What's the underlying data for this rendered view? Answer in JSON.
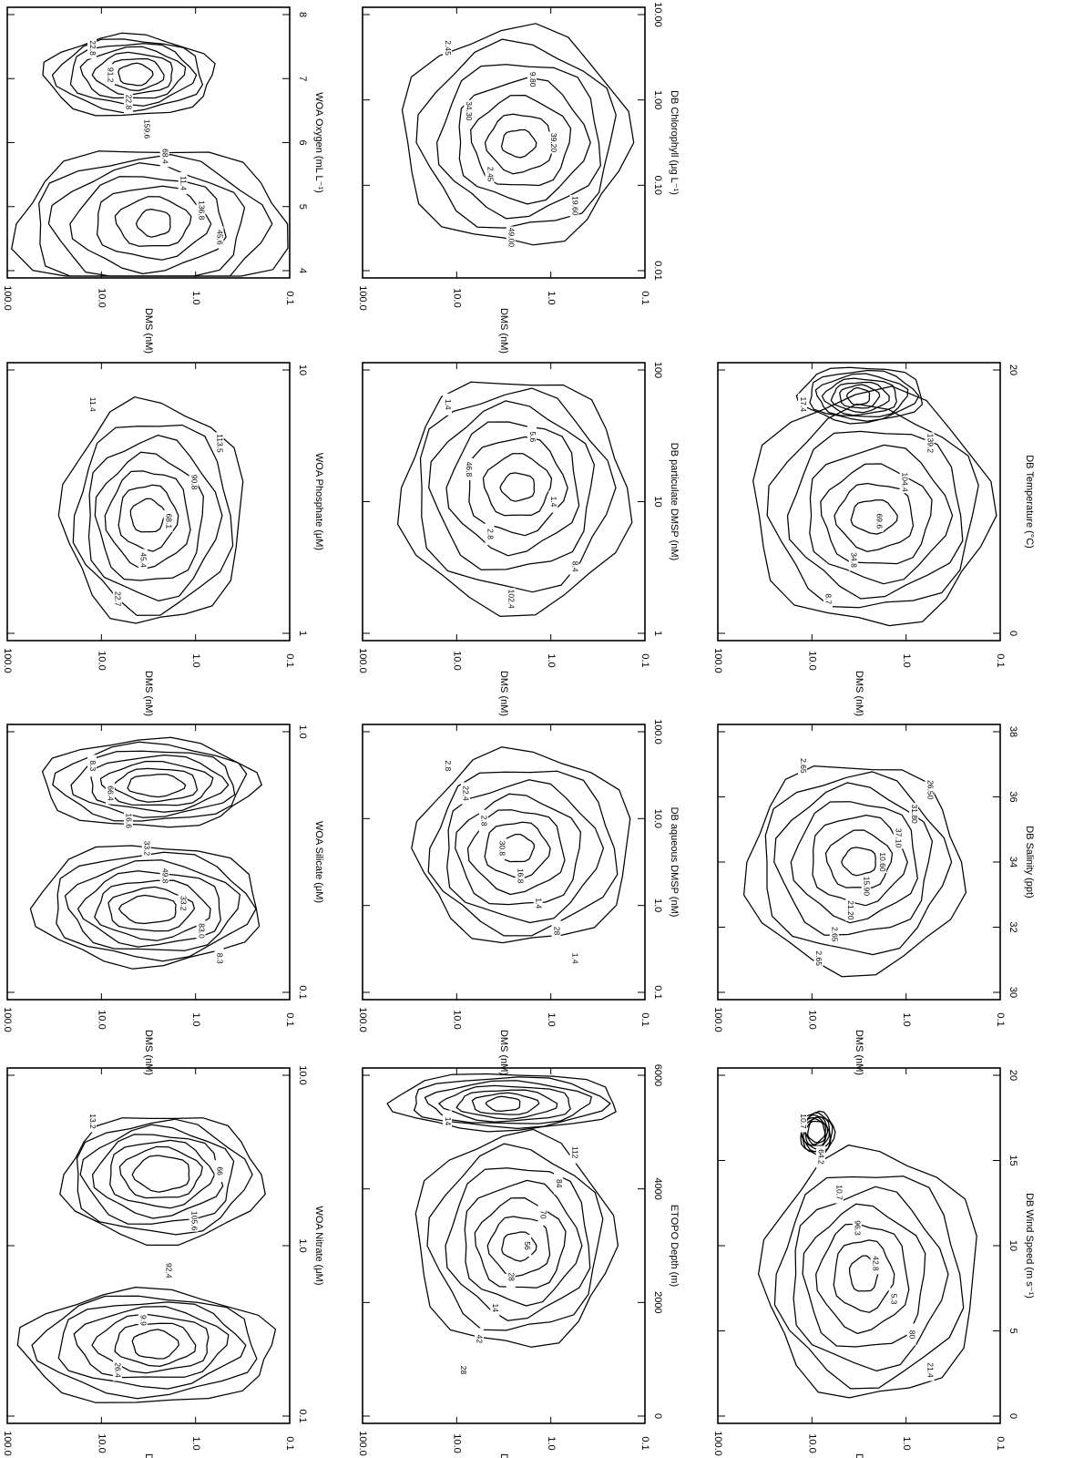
{
  "colors": {
    "ink": "#000000",
    "background": "#ffffff"
  },
  "chart_data": [
    {
      "type": "contour",
      "grid": false,
      "xlabel": "WOA Nitrate (μM)",
      "ylabel": "DMS (nM)",
      "xscale": "log",
      "yscale": "log",
      "xticks": [
        "0.1",
        "1.0",
        "10.0"
      ],
      "yticks": [
        "100.0",
        "10.0",
        "1.0",
        "0.1"
      ],
      "contour_labels": [
        "13.2",
        "26.4",
        "9.9",
        "92.4",
        "105.6",
        "66"
      ]
    },
    {
      "type": "contour",
      "grid": false,
      "xlabel": "WOA Silicate (μM)",
      "ylabel": "DMS (nM)",
      "xscale": "log",
      "yscale": "log",
      "xticks": [
        "0.1",
        "1.0"
      ],
      "yticks": [
        "100.0",
        "10.0",
        "1.0",
        "0.1"
      ],
      "contour_labels": [
        "8.3",
        "33.2",
        "16.6",
        "8.3",
        "49.8",
        "66.4",
        "83.0",
        "33.2"
      ]
    },
    {
      "type": "contour",
      "grid": false,
      "xlabel": "WOA Phosphate (μM)",
      "ylabel": "DMS (nM)",
      "xscale": "log",
      "yscale": "log",
      "xticks": [
        "1",
        "10"
      ],
      "yticks": [
        "100.0",
        "10.0",
        "1.0",
        "0.1"
      ],
      "contour_labels": [
        "11.4",
        "22.7",
        "45.4",
        "68.1",
        "90.8",
        "113.5"
      ]
    },
    {
      "type": "contour",
      "grid": false,
      "xlabel": "WOA Oxygen (mL L⁻¹)",
      "ylabel": "DMS (nM)",
      "xscale": "linear",
      "yscale": "log",
      "xticks": [
        "4",
        "5",
        "6",
        "7",
        "8"
      ],
      "yticks": [
        "100.0",
        "10.0",
        "1.0",
        "0.1"
      ],
      "contour_labels": [
        "22.8",
        "11.4",
        "22.8",
        "45.6",
        "68.4",
        "91.2",
        "136.8",
        "159.6"
      ]
    },
    {
      "type": "contour",
      "grid": false,
      "xlabel": "ETOPO Depth (m)",
      "ylabel": "DMS (nM)",
      "xscale": "linear",
      "yscale": "log",
      "xticks": [
        "0",
        "2000",
        "4000",
        "6000"
      ],
      "yticks": [
        "100.0",
        "10.0",
        "1.0",
        "0.1"
      ],
      "contour_labels": [
        "14",
        "28",
        "42",
        "14",
        "28",
        "56",
        "70",
        "84",
        "112"
      ]
    },
    {
      "type": "contour",
      "grid": false,
      "xlabel": "DB aqueous DMSP (nM)",
      "ylabel": "DMS (nM)",
      "xscale": "log",
      "yscale": "log",
      "xticks": [
        "0.1",
        "1.0",
        "10.0",
        "100.0"
      ],
      "yticks": [
        "100.0",
        "10.0",
        "1.0",
        "0.1"
      ],
      "contour_labels": [
        "2.8",
        "1.4",
        "2.8",
        "1.4",
        "16.8",
        "22.4",
        "28",
        "30.8"
      ]
    },
    {
      "type": "contour",
      "grid": false,
      "xlabel": "DB particulate DMSP (nM)",
      "ylabel": "DMS (nM)",
      "xscale": "log",
      "yscale": "log",
      "xticks": [
        "1",
        "10",
        "100"
      ],
      "yticks": [
        "100.0",
        "10.0",
        "1.0",
        "0.1"
      ],
      "contour_labels": [
        "1.4",
        "2.8",
        "5.6",
        "8.4",
        "46.8",
        "102.4",
        "1.4"
      ]
    },
    {
      "type": "contour",
      "grid": false,
      "xlabel": "DB Chlorophyll (μg L⁻¹)",
      "ylabel": "DMS (nM)",
      "xscale": "log",
      "yscale": "log",
      "xticks": [
        "0.01",
        "0.10",
        "1.00",
        "10.00"
      ],
      "yticks": [
        "100.0",
        "10.0",
        "1.0",
        "0.1"
      ],
      "contour_labels": [
        "2.45",
        "2.45",
        "9.80",
        "19.60",
        "34.30",
        "49.00",
        "39.20"
      ]
    },
    {
      "type": "contour",
      "grid": false,
      "xlabel": "DB Wind Speed (m s⁻¹)",
      "ylabel": "DMS (nM)",
      "xscale": "linear",
      "yscale": "log",
      "xticks": [
        "0",
        "5",
        "10",
        "15",
        "20"
      ],
      "yticks": [
        "100.0",
        "10.0",
        "1.0",
        "0.1"
      ],
      "contour_labels": [
        "10.7",
        "5.3",
        "10.7",
        "21.4",
        "42.8",
        "64.2",
        "80",
        "96.3"
      ]
    },
    {
      "type": "contour",
      "grid": false,
      "xlabel": "DB Salinity (ppt)",
      "ylabel": "DMS (nM)",
      "xscale": "linear",
      "yscale": "log",
      "xticks": [
        "30",
        "32",
        "34",
        "36",
        "38"
      ],
      "yticks": [
        "100.0",
        "10.0",
        "1.0",
        "0.1"
      ],
      "contour_labels": [
        "2.65",
        "2.65",
        "2.65",
        "21.20",
        "15.90",
        "10.60",
        "37.10",
        "31.80",
        "26.50"
      ]
    },
    {
      "type": "contour",
      "grid": false,
      "xlabel": "DB Temperature (°C)",
      "ylabel": "DMS (nM)",
      "xscale": "linear",
      "yscale": "log",
      "xticks": [
        "0",
        "20"
      ],
      "yticks": [
        "100.0",
        "10.0",
        "1.0",
        "0.1"
      ],
      "contour_labels": [
        "17.4",
        "8.7",
        "34.8",
        "69.6",
        "104.4",
        "139.2"
      ]
    }
  ]
}
